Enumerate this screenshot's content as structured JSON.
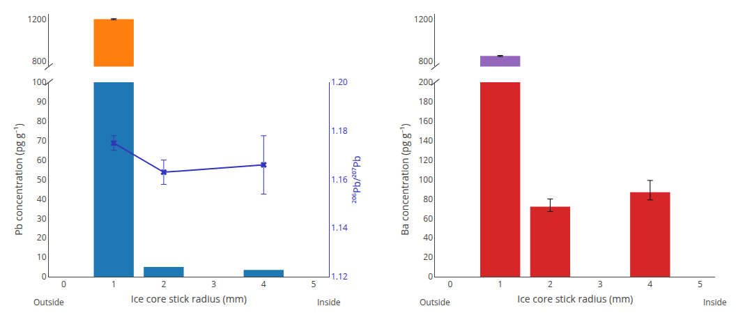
{
  "chart_data": [
    {
      "type": "bar",
      "x": [
        1,
        2,
        4
      ],
      "xlabel": "Ice core stick radius (mm)",
      "xlim": [
        -0.3,
        5.3
      ],
      "xticks": [
        0,
        1,
        2,
        3,
        4,
        5
      ],
      "ylabel": "Pb concentration (pg g⁻¹)",
      "ylim": [
        [
          0,
          100
        ],
        [
          750,
          1250
        ]
      ],
      "yticks": [
        [
          0,
          10,
          20,
          30,
          40,
          50,
          60,
          70,
          80,
          90,
          100
        ],
        [
          800,
          1200
        ]
      ],
      "y2label": "²⁰⁶Pb/²⁰⁷Pb",
      "y2lim": [
        1.12,
        1.2
      ],
      "y2ticks": [
        1.12,
        1.14,
        1.16,
        1.18,
        {
          "value": 1.2,
          "label": "1.20"
        }
      ],
      "grid": false,
      "series": [
        {
          "type": "bar",
          "values": [
            1200,
            5.0,
            3.5
          ],
          "error_lo": [
            5,
            null,
            null
          ],
          "error_hi": [
            5,
            null,
            null
          ]
        },
        {
          "type": "line",
          "axis": "y2",
          "color": "#3333bb",
          "marker": "x",
          "values": [
            1.175,
            1.163,
            1.166
          ],
          "error": [
            0.003,
            0.005,
            0.012
          ]
        }
      ],
      "annotations": [
        "Outside",
        "Inside"
      ]
    },
    {
      "type": "bar",
      "x": [
        1,
        2,
        4
      ],
      "xlabel": "Ice core stick radius (mm)",
      "xlim": [
        -0.3,
        5.3
      ],
      "xticks": [
        0,
        1,
        2,
        3,
        4,
        5
      ],
      "ylabel": "Ba concentration (pg g⁻¹)",
      "ylim": [
        [
          0,
          200
        ],
        [
          750,
          1250
        ]
      ],
      "yticks": [
        [
          0,
          20,
          40,
          60,
          80,
          100,
          120,
          140,
          160,
          180,
          200
        ],
        [
          800,
          1200
        ]
      ],
      "grid": false,
      "series": [
        {
          "type": "bar",
          "values": [
            850,
            72,
            87
          ],
          "error_lo": [
            5,
            5,
            8
          ],
          "error_hi": [
            5,
            8,
            12
          ]
        }
      ],
      "annotations": [
        "Outside",
        "Inside"
      ]
    }
  ]
}
